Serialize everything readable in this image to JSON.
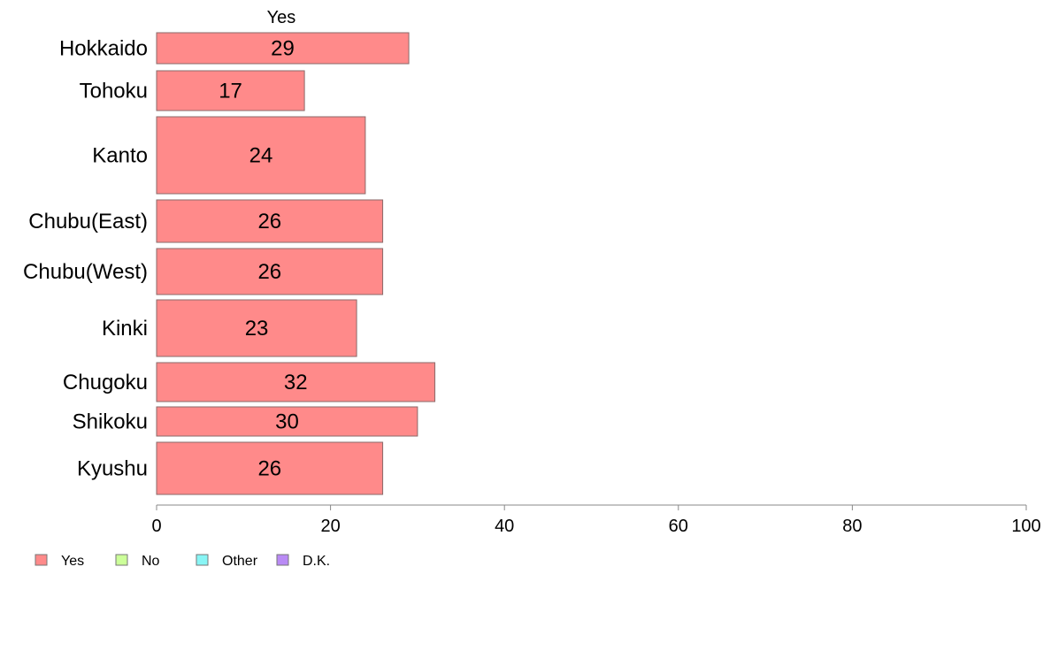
{
  "chart_data": {
    "type": "bar",
    "orientation": "horizontal",
    "stacked": true,
    "categories": [
      "Hokkaido",
      "Tohoku",
      "Kanto",
      "Chubu(East)",
      "Chubu(West)",
      "Kinki",
      "Chugoku",
      "Shikoku",
      "Kyushu"
    ],
    "series": [
      {
        "name": "Yes",
        "color": "#ff8a8a",
        "values": [
          29,
          17,
          24,
          26,
          26,
          23,
          32,
          30,
          26
        ]
      }
    ],
    "series_label": "Yes",
    "xlim": [
      0,
      100
    ],
    "xticks": [
      0,
      20,
      40,
      60,
      80,
      100
    ],
    "grid": false,
    "legend": {
      "placement": "bottom-left",
      "entries": [
        {
          "label": "Yes",
          "color": "#ff8a8a"
        },
        {
          "label": "No",
          "color": "#ccff99"
        },
        {
          "label": "Other",
          "color": "#88f5f5"
        },
        {
          "label": "D.K.",
          "color": "#b98af5"
        }
      ]
    }
  }
}
